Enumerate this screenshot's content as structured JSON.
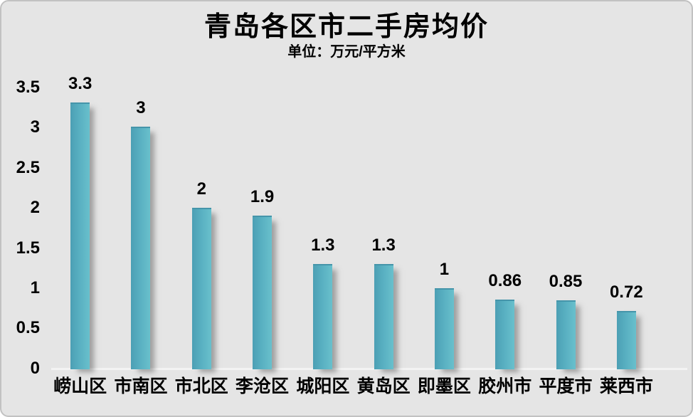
{
  "frame": {
    "background_color": "#e5e5e5",
    "border_color": "#c2c2c2"
  },
  "header": {
    "title": "青岛各区市二手房均价",
    "subtitle": "单位：万元/平方米"
  },
  "chart_data": {
    "type": "bar",
    "title": "青岛各区市二手房均价",
    "subtitle": "单位：万元/平方米",
    "categories": [
      "崂山区",
      "市南区",
      "市北区",
      "李沧区",
      "城阳区",
      "黄岛区",
      "即墨区",
      "胶州市",
      "平度市",
      "莱西市"
    ],
    "values": [
      3.3,
      3,
      2,
      1.9,
      1.3,
      1.3,
      1,
      0.86,
      0.85,
      0.72
    ],
    "value_labels": [
      "3.3",
      "3",
      "2",
      "1.9",
      "1.3",
      "1.3",
      "1",
      "0.86",
      "0.85",
      "0.72"
    ],
    "xlabel": "",
    "ylabel": "",
    "ylim": [
      0,
      3.5
    ],
    "ytick_labels": [
      "3.5",
      "3",
      "2.5",
      "2",
      "1.5",
      "1",
      "0.5",
      "0"
    ],
    "grid": false,
    "legend": false,
    "bar_color_gradient": [
      "#4c9fb4",
      "#69c0cc"
    ],
    "text_color": "#000000",
    "background_color": "#e5e5e5"
  }
}
